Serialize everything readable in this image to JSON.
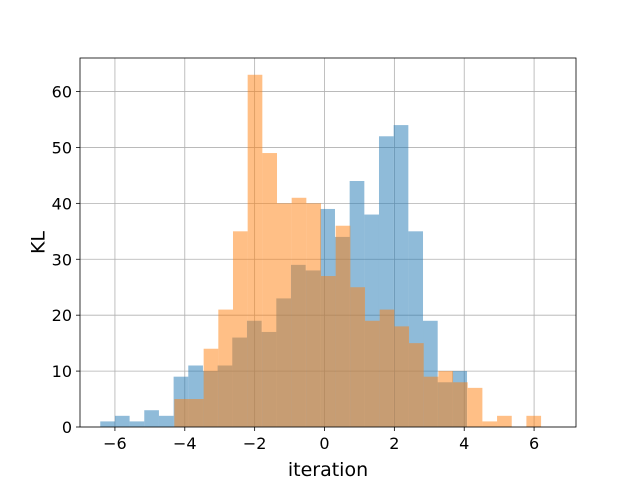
{
  "chart_data": {
    "type": "histogram",
    "title": "",
    "xlabel": "iteration",
    "ylabel": "KL",
    "xlim": [
      -7.0,
      7.2
    ],
    "ylim": [
      0,
      66
    ],
    "xticks": [
      -6,
      -4,
      -2,
      0,
      2,
      4,
      6
    ],
    "xtick_labels": [
      "−6",
      "−4",
      "−2",
      "0",
      "2",
      "4",
      "6"
    ],
    "yticks": [
      0,
      10,
      20,
      30,
      40,
      50,
      60
    ],
    "ytick_labels": [
      "0",
      "10",
      "20",
      "30",
      "40",
      "50",
      "60"
    ],
    "grid": true,
    "legend": "none",
    "series": [
      {
        "color": "#1f77b4",
        "alpha": 0.5,
        "bin_start": -6.42,
        "bin_width": 0.42,
        "counts": [
          1,
          2,
          1,
          3,
          2,
          9,
          11,
          10,
          11,
          16,
          19,
          17,
          23,
          29,
          28,
          39,
          34,
          44,
          38,
          52,
          54,
          35,
          19,
          8,
          10
        ]
      },
      {
        "color": "#ff7f0e",
        "alpha": 0.5,
        "bin_start": -4.3,
        "bin_width": 0.42,
        "counts": [
          5,
          5,
          14,
          21,
          35,
          63,
          49,
          40,
          41,
          40,
          27,
          36,
          25,
          19,
          21,
          18,
          15,
          9,
          10,
          8,
          7,
          1,
          2,
          0,
          2
        ]
      }
    ]
  }
}
